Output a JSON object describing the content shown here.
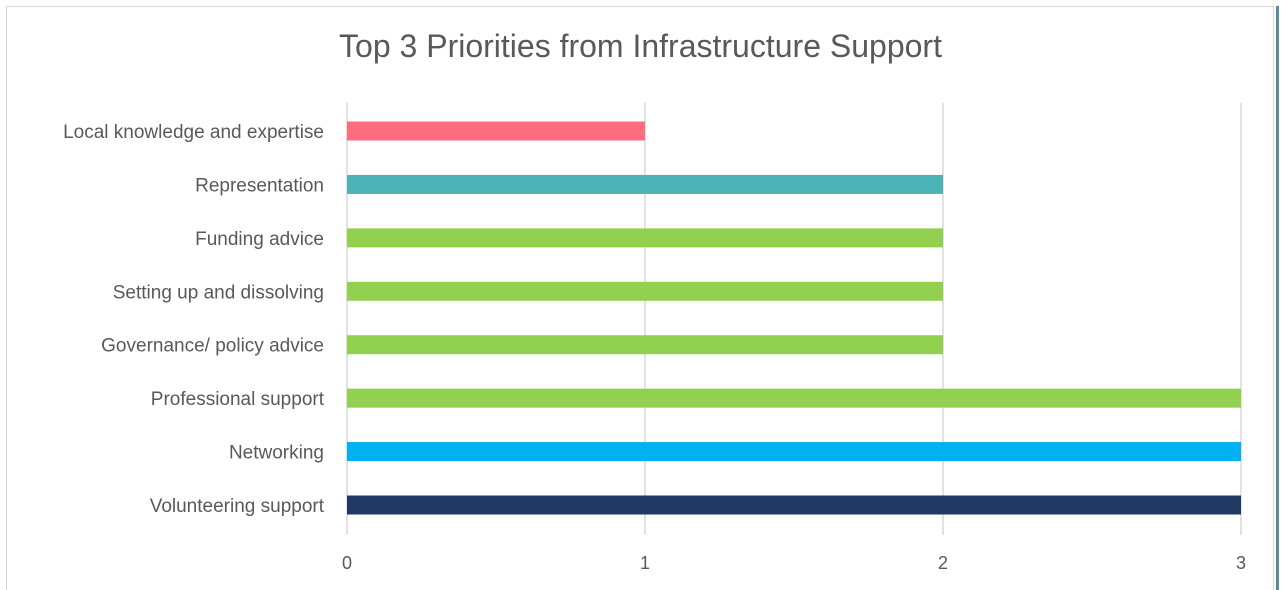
{
  "chart_data": {
    "type": "bar",
    "orientation": "horizontal",
    "title": "Top 3 Priorities from Infrastructure Support",
    "xlabel": "",
    "ylabel": "",
    "xlim": [
      0,
      3
    ],
    "x_ticks": [
      "0",
      "1",
      "2",
      "3"
    ],
    "grid": "vertical",
    "legend": "none",
    "categories": [
      "Local knowledge and expertise",
      "Representation",
      "Funding advice",
      "Setting up and dissolving",
      "Governance/ policy advice",
      "Professional support",
      "Networking",
      "Volunteering support"
    ],
    "values": [
      1,
      2,
      2,
      2,
      2,
      3,
      3,
      3
    ],
    "colors": [
      "#ff6b7f",
      "#4bb2b6",
      "#92d050",
      "#92d050",
      "#92d050",
      "#92d050",
      "#00b0f0",
      "#1f3864"
    ]
  }
}
